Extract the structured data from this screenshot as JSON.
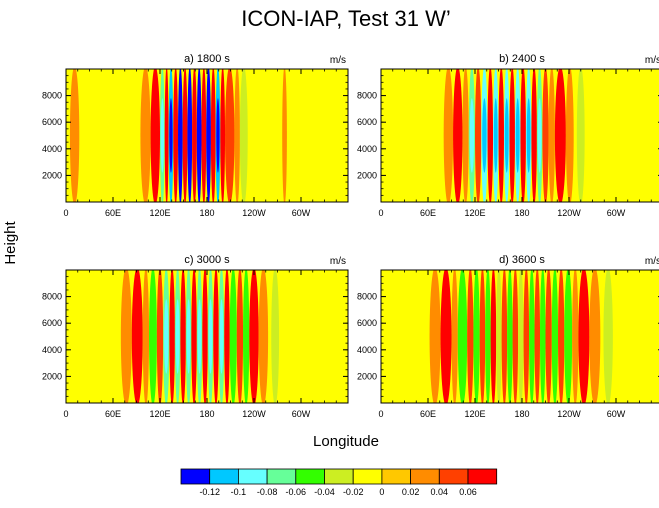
{
  "figure": {
    "title": "ICON-IAP, Test 31 W’",
    "ylabel": "Height",
    "xlabel": "Longitude"
  },
  "colorbar": {
    "labels": [
      "-0.12",
      "-0.1",
      "-0.08",
      "-0.06",
      "-0.04",
      "-0.02",
      "0",
      "0.02",
      "0.04",
      "0.06"
    ],
    "colors": [
      "#0000ff",
      "#00c8ff",
      "#66ffff",
      "#66ff99",
      "#33ff00",
      "#ccee22",
      "#ffff00",
      "#ffc800",
      "#ff8c00",
      "#ff4000",
      "#ff0000"
    ]
  },
  "chart_data": [
    {
      "type": "heatmap",
      "panel_label": "a) 1800 s",
      "units": "m/s",
      "x_ticklabels": [
        "0",
        "60E",
        "120E",
        "180",
        "120W",
        "60W"
      ],
      "y_ticklabels": [
        "2000",
        "4000",
        "6000",
        "8000"
      ],
      "x_ticks_deg": [
        0,
        60,
        120,
        180,
        240,
        300
      ],
      "y_ticks_m": [
        2000,
        4000,
        6000,
        8000
      ],
      "xlim": [
        0,
        360
      ],
      "ylim": [
        0,
        10000
      ],
      "background": 0,
      "bands": [
        {
          "x0": 5,
          "x1": 17,
          "w": 0.02
        },
        {
          "x0": 95,
          "x1": 108,
          "w": 0.02
        },
        {
          "x0": 108,
          "x1": 120,
          "w": 0.06
        },
        {
          "x0": 120,
          "x1": 126,
          "w": -0.06
        },
        {
          "x0": 126,
          "x1": 131,
          "w": 0.06
        },
        {
          "x0": 131,
          "x1": 137,
          "w": -0.1
        },
        {
          "x0": 137,
          "x1": 143,
          "w": 0.06
        },
        {
          "x0": 143,
          "x1": 149,
          "w": -0.12
        },
        {
          "x0": 149,
          "x1": 155,
          "w": 0.06
        },
        {
          "x0": 155,
          "x1": 161,
          "w": -0.12
        },
        {
          "x0": 161,
          "x1": 167,
          "w": 0.06
        },
        {
          "x0": 167,
          "x1": 173,
          "w": -0.12
        },
        {
          "x0": 173,
          "x1": 179,
          "w": 0.06
        },
        {
          "x0": 179,
          "x1": 185,
          "w": -0.12
        },
        {
          "x0": 185,
          "x1": 191,
          "w": 0.06
        },
        {
          "x0": 191,
          "x1": 197,
          "w": -0.1
        },
        {
          "x0": 197,
          "x1": 203,
          "w": 0.06
        },
        {
          "x0": 203,
          "x1": 215,
          "w": 0.04
        },
        {
          "x0": 215,
          "x1": 222,
          "w": 0.02
        },
        {
          "x0": 222,
          "x1": 232,
          "w": -0.02
        },
        {
          "x0": 276,
          "x1": 282,
          "w": 0.02
        }
      ]
    },
    {
      "type": "heatmap",
      "panel_label": "b) 2400 s",
      "units": "m/s",
      "x_ticklabels": [
        "0",
        "60E",
        "120E",
        "180",
        "120W",
        "60W"
      ],
      "y_ticklabels": [
        "2000",
        "4000",
        "6000",
        "8000"
      ],
      "x_ticks_deg": [
        0,
        60,
        120,
        180,
        240,
        300
      ],
      "y_ticks_m": [
        2000,
        4000,
        6000,
        8000
      ],
      "xlim": [
        0,
        360
      ],
      "ylim": [
        0,
        10000
      ],
      "background": 0,
      "bands": [
        {
          "x0": 80,
          "x1": 92,
          "w": 0.02
        },
        {
          "x0": 92,
          "x1": 104,
          "w": 0.06
        },
        {
          "x0": 104,
          "x1": 112,
          "w": 0.02
        },
        {
          "x0": 112,
          "x1": 120,
          "w": -0.06
        },
        {
          "x0": 120,
          "x1": 128,
          "w": 0.04
        },
        {
          "x0": 128,
          "x1": 136,
          "w": -0.08
        },
        {
          "x0": 136,
          "x1": 143,
          "w": 0.06
        },
        {
          "x0": 143,
          "x1": 150,
          "w": -0.08
        },
        {
          "x0": 150,
          "x1": 157,
          "w": 0.06
        },
        {
          "x0": 157,
          "x1": 164,
          "w": -0.08
        },
        {
          "x0": 164,
          "x1": 171,
          "w": 0.06
        },
        {
          "x0": 171,
          "x1": 178,
          "w": -0.08
        },
        {
          "x0": 178,
          "x1": 185,
          "w": 0.06
        },
        {
          "x0": 185,
          "x1": 192,
          "w": -0.08
        },
        {
          "x0": 192,
          "x1": 199,
          "w": 0.06
        },
        {
          "x0": 199,
          "x1": 206,
          "w": -0.06
        },
        {
          "x0": 206,
          "x1": 214,
          "w": 0.04
        },
        {
          "x0": 214,
          "x1": 222,
          "w": 0.02
        },
        {
          "x0": 222,
          "x1": 236,
          "w": 0.06
        },
        {
          "x0": 236,
          "x1": 246,
          "w": 0.02
        },
        {
          "x0": 250,
          "x1": 260,
          "w": -0.02
        }
      ]
    },
    {
      "type": "heatmap",
      "panel_label": "c) 3000 s",
      "units": "m/s",
      "x_ticklabels": [
        "0",
        "60E",
        "120E",
        "180",
        "120W",
        "60W"
      ],
      "y_ticklabels": [
        "2000",
        "4000",
        "6000",
        "8000"
      ],
      "x_ticks_deg": [
        0,
        60,
        120,
        180,
        240,
        300
      ],
      "y_ticks_m": [
        2000,
        4000,
        6000,
        8000
      ],
      "xlim": [
        0,
        360
      ],
      "ylim": [
        0,
        10000
      ],
      "background": 0,
      "bands": [
        {
          "x0": 70,
          "x1": 84,
          "w": 0.02
        },
        {
          "x0": 84,
          "x1": 98,
          "w": 0.06
        },
        {
          "x0": 98,
          "x1": 106,
          "w": 0.02
        },
        {
          "x0": 106,
          "x1": 116,
          "w": -0.04
        },
        {
          "x0": 116,
          "x1": 124,
          "w": 0.04
        },
        {
          "x0": 124,
          "x1": 132,
          "w": -0.06
        },
        {
          "x0": 132,
          "x1": 139,
          "w": 0.06
        },
        {
          "x0": 139,
          "x1": 146,
          "w": -0.06
        },
        {
          "x0": 146,
          "x1": 153,
          "w": 0.06
        },
        {
          "x0": 153,
          "x1": 160,
          "w": -0.06
        },
        {
          "x0": 160,
          "x1": 167,
          "w": 0.06
        },
        {
          "x0": 167,
          "x1": 174,
          "w": -0.06
        },
        {
          "x0": 174,
          "x1": 181,
          "w": 0.06
        },
        {
          "x0": 181,
          "x1": 188,
          "w": -0.06
        },
        {
          "x0": 188,
          "x1": 195,
          "w": 0.06
        },
        {
          "x0": 195,
          "x1": 202,
          "w": -0.06
        },
        {
          "x0": 202,
          "x1": 209,
          "w": 0.06
        },
        {
          "x0": 209,
          "x1": 218,
          "w": -0.04
        },
        {
          "x0": 218,
          "x1": 226,
          "w": 0.04
        },
        {
          "x0": 226,
          "x1": 234,
          "w": -0.04
        },
        {
          "x0": 234,
          "x1": 246,
          "w": 0.06
        },
        {
          "x0": 246,
          "x1": 258,
          "w": 0.02
        },
        {
          "x0": 262,
          "x1": 272,
          "w": -0.02
        }
      ]
    },
    {
      "type": "heatmap",
      "panel_label": "d) 3600 s",
      "units": "m/s",
      "x_ticklabels": [
        "0",
        "60E",
        "120E",
        "180",
        "120W",
        "60W"
      ],
      "y_ticklabels": [
        "2000",
        "4000",
        "6000",
        "8000"
      ],
      "x_ticks_deg": [
        0,
        60,
        120,
        180,
        240,
        300
      ],
      "y_ticks_m": [
        2000,
        4000,
        6000,
        8000
      ],
      "xlim": [
        0,
        360
      ],
      "ylim": [
        0,
        10000
      ],
      "background": 0,
      "bands": [
        {
          "x0": 62,
          "x1": 76,
          "w": 0.02
        },
        {
          "x0": 76,
          "x1": 90,
          "w": 0.06
        },
        {
          "x0": 90,
          "x1": 98,
          "w": 0.02
        },
        {
          "x0": 98,
          "x1": 110,
          "w": -0.04
        },
        {
          "x0": 110,
          "x1": 118,
          "w": 0.04
        },
        {
          "x0": 118,
          "x1": 126,
          "w": -0.04
        },
        {
          "x0": 126,
          "x1": 133,
          "w": 0.04
        },
        {
          "x0": 133,
          "x1": 140,
          "w": -0.04
        },
        {
          "x0": 140,
          "x1": 147,
          "w": 0.06
        },
        {
          "x0": 147,
          "x1": 154,
          "w": -0.02
        },
        {
          "x0": 154,
          "x1": 161,
          "w": 0.04
        },
        {
          "x0": 161,
          "x1": 168,
          "w": -0.04
        },
        {
          "x0": 168,
          "x1": 175,
          "w": 0.04
        },
        {
          "x0": 175,
          "x1": 182,
          "w": -0.02
        },
        {
          "x0": 182,
          "x1": 189,
          "w": 0.04
        },
        {
          "x0": 189,
          "x1": 196,
          "w": -0.04
        },
        {
          "x0": 196,
          "x1": 203,
          "w": 0.04
        },
        {
          "x0": 203,
          "x1": 210,
          "w": -0.04
        },
        {
          "x0": 210,
          "x1": 218,
          "w": 0.04
        },
        {
          "x0": 218,
          "x1": 226,
          "w": -0.04
        },
        {
          "x0": 226,
          "x1": 234,
          "w": 0.04
        },
        {
          "x0": 234,
          "x1": 244,
          "w": -0.04
        },
        {
          "x0": 244,
          "x1": 252,
          "w": 0.02
        },
        {
          "x0": 252,
          "x1": 266,
          "w": 0.06
        },
        {
          "x0": 266,
          "x1": 280,
          "w": 0.02
        },
        {
          "x0": 284,
          "x1": 296,
          "w": -0.02
        }
      ]
    }
  ]
}
